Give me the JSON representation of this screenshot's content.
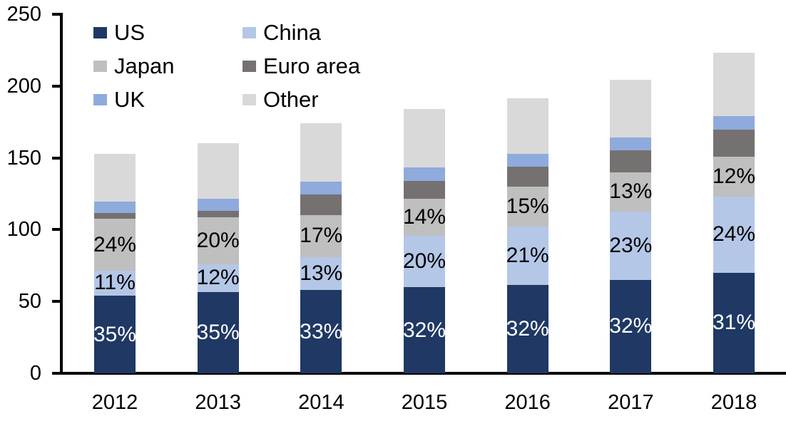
{
  "chart_data": {
    "type": "bar",
    "stacked": true,
    "title": "",
    "xlabel": "",
    "ylabel": "",
    "categories": [
      "2012",
      "2013",
      "2014",
      "2015",
      "2016",
      "2017",
      "2018"
    ],
    "series": [
      {
        "name": "US",
        "color": "#1F3864",
        "values": [
          54,
          56.5,
          58,
          60,
          61.5,
          65,
          70
        ]
      },
      {
        "name": "China",
        "color": "#B4C7E7",
        "values": [
          17.5,
          19.5,
          23,
          35.5,
          40.5,
          47.5,
          53
        ]
      },
      {
        "name": "Japan",
        "color": "#BFBFBF",
        "values": [
          36,
          32.5,
          29,
          26,
          28,
          27.5,
          28
        ]
      },
      {
        "name": "Euro area",
        "color": "#767171",
        "values": [
          4,
          4.5,
          14.5,
          12.5,
          14,
          15.5,
          18.5
        ]
      },
      {
        "name": "UK",
        "color": "#8FAADC",
        "values": [
          8,
          8.5,
          9,
          9.5,
          9,
          8.5,
          9.5
        ]
      },
      {
        "name": "Other",
        "color": "#D9D9D9",
        "values": [
          33.5,
          38.5,
          40.5,
          40.5,
          38.5,
          40.5,
          44
        ]
      }
    ],
    "totals": [
      153,
      160,
      174,
      184,
      191.5,
      204.5,
      223
    ],
    "segment_labels": [
      {
        "series": "US",
        "text_color": "#FFFFFF",
        "values": [
          "35%",
          "35%",
          "33%",
          "32%",
          "32%",
          "32%",
          "31%"
        ]
      },
      {
        "series": "China",
        "text_color": "#000000",
        "values": [
          "11%",
          "12%",
          "13%",
          "20%",
          "21%",
          "23%",
          "24%"
        ]
      },
      {
        "series": "Japan",
        "text_color": "#000000",
        "values": [
          "24%",
          "20%",
          "17%",
          "14%",
          "15%",
          "13%",
          "12%"
        ]
      }
    ],
    "ylim": [
      0,
      250
    ],
    "yticks": [
      "0",
      "50",
      "100",
      "150",
      "200",
      "250"
    ],
    "grid": false,
    "axis_color": "#000000",
    "legend": {
      "position": "top-left",
      "columns": [
        [
          "US",
          "Japan",
          "UK"
        ],
        [
          "China",
          "Euro area",
          "Other"
        ]
      ]
    }
  }
}
